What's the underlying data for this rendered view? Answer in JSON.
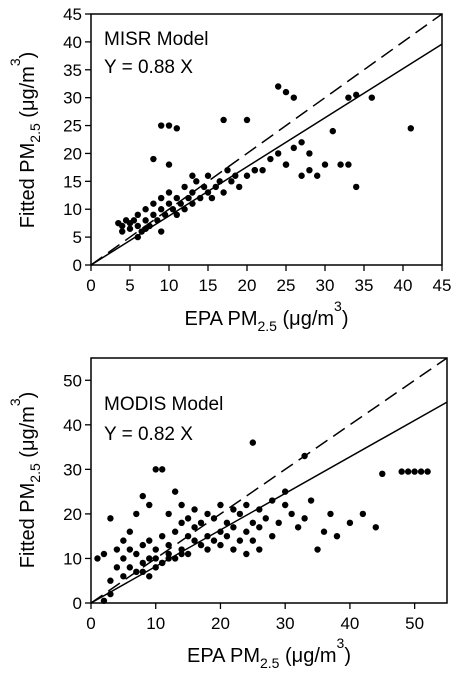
{
  "chart_data": [
    {
      "type": "scatter",
      "color": "#000000",
      "annotations": [
        "MISR Model",
        "Y = 0.88 X"
      ],
      "x_label": [
        "EPA PM",
        "2.5",
        " (μg/m",
        "3",
        ")"
      ],
      "y_label": [
        "Fitted PM",
        "2.5",
        " (μg/m",
        "3",
        ")"
      ],
      "xlim": [
        0,
        45
      ],
      "ylim": [
        0,
        45
      ],
      "xticks": [
        0,
        5,
        10,
        15,
        20,
        25,
        30,
        35,
        40,
        45
      ],
      "yticks": [
        0,
        5,
        10,
        15,
        20,
        25,
        30,
        35,
        40,
        45
      ],
      "fit_slope": 0.88,
      "identity_slope": 1,
      "x": [
        4,
        4.5,
        5,
        5,
        5.5,
        6,
        6,
        6.5,
        7,
        7,
        7.5,
        8,
        8,
        8.5,
        9,
        9,
        9.5,
        10,
        10,
        10.5,
        11,
        11,
        11.5,
        12,
        12,
        12.5,
        13,
        13,
        13.5,
        14,
        14.5,
        15,
        15,
        15.5,
        16,
        16.5,
        17,
        17.5,
        18,
        18.5,
        19,
        20,
        21,
        22,
        23,
        24,
        25,
        26,
        27,
        28,
        9,
        10,
        11,
        17,
        24,
        25,
        26,
        33,
        34,
        36,
        41,
        34,
        30,
        32,
        33,
        29,
        27,
        28,
        20,
        31,
        8,
        10,
        13,
        21,
        25,
        3.5,
        4,
        6,
        7,
        9
      ],
      "values": [
        7,
        8,
        6.5,
        7.5,
        8,
        7,
        9,
        6,
        8,
        10,
        7,
        9,
        11,
        8,
        10,
        12,
        9,
        11,
        13,
        10,
        9,
        12,
        11,
        10,
        14,
        12,
        11,
        13,
        15,
        12,
        14,
        13,
        16,
        12,
        14,
        15,
        13,
        17,
        15,
        16,
        14,
        16,
        17,
        17,
        19,
        20,
        18,
        21,
        22,
        17,
        25,
        25,
        24.5,
        26,
        32,
        31,
        30,
        30,
        30.5,
        30,
        24.5,
        14,
        18,
        18,
        18,
        16,
        16,
        20,
        26,
        24,
        19,
        18,
        16,
        17,
        18,
        7.5,
        6,
        5,
        6.5,
        6
      ]
    },
    {
      "type": "scatter",
      "color": "#000000",
      "annotations": [
        "MODIS Model",
        "Y = 0.82 X"
      ],
      "x_label": [
        "EPA PM",
        "2.5",
        " (μg/m",
        "3",
        ")"
      ],
      "y_label": [
        "Fitted PM",
        "2.5",
        " (μg/m",
        "3",
        ")"
      ],
      "xlim": [
        0,
        55
      ],
      "ylim": [
        0,
        55
      ],
      "xticks": [
        0,
        10,
        20,
        30,
        40,
        50
      ],
      "yticks": [
        0,
        10,
        20,
        30,
        40,
        50
      ],
      "fit_slope": 0.82,
      "identity_slope": 1,
      "x": [
        1,
        2,
        3,
        3,
        4,
        4,
        5,
        5,
        5,
        6,
        6,
        6,
        7,
        7,
        7,
        8,
        8,
        8,
        9,
        9,
        9,
        10,
        10,
        10,
        11,
        11,
        11,
        12,
        12,
        12,
        13,
        13,
        13,
        14,
        14,
        14,
        15,
        15,
        15,
        16,
        16,
        16,
        17,
        17,
        18,
        18,
        19,
        19,
        20,
        20,
        21,
        21,
        22,
        22,
        23,
        23,
        24,
        24,
        25,
        25,
        26,
        26,
        27,
        28,
        28,
        29,
        30,
        30,
        31,
        32,
        33,
        33,
        34,
        35,
        36,
        37,
        38,
        40,
        42,
        44,
        45,
        48,
        49,
        50,
        51,
        52,
        3,
        2,
        25,
        26,
        10,
        11,
        12,
        8,
        9,
        14,
        18,
        20,
        22,
        24
      ],
      "values": [
        10,
        11,
        5,
        19,
        8,
        12,
        6,
        10,
        14,
        8,
        12,
        16,
        7,
        11,
        20,
        9,
        13,
        24,
        10,
        14,
        22,
        8,
        12,
        30,
        9,
        15,
        30,
        11,
        13,
        20,
        10,
        16,
        25,
        12,
        18,
        22,
        11,
        15,
        19,
        14,
        17,
        21,
        13,
        18,
        15,
        20,
        14,
        19,
        16,
        22,
        15,
        18,
        17,
        21,
        14,
        20,
        16,
        22,
        18,
        36,
        17,
        21,
        19,
        15,
        23,
        18,
        22,
        25,
        20,
        17,
        19,
        33,
        23,
        12,
        16,
        20,
        15,
        18,
        20,
        17,
        29,
        29.5,
        29.5,
        29.5,
        29.5,
        29.5,
        2,
        0.5,
        14,
        12,
        10,
        9,
        10,
        7,
        6,
        11,
        12,
        13,
        12,
        11
      ]
    }
  ]
}
